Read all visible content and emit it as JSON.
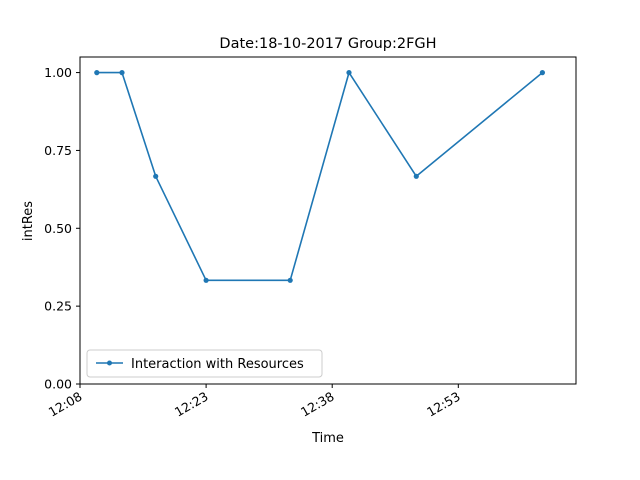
{
  "chart_data": {
    "type": "line",
    "title": "Date:18-10-2017  Group:2FGH",
    "xlabel": "Time",
    "ylabel": "intRes",
    "x_ticks": [
      "12:08",
      "12:23",
      "12:38",
      "12:53"
    ],
    "y_ticks": [
      "0.00",
      "0.25",
      "0.50",
      "0.75",
      "1.00"
    ],
    "ylim": [
      0,
      1.05
    ],
    "xlim": [
      "12:08",
      "13:07"
    ],
    "grid": false,
    "legend_position": "lower-left",
    "series": [
      {
        "name": "Interaction with Resources",
        "color": "#1f77b4",
        "marker": "circle",
        "points": [
          {
            "x": "12:10",
            "y": 1.0
          },
          {
            "x": "12:13",
            "y": 1.0
          },
          {
            "x": "12:17",
            "y": 0.667
          },
          {
            "x": "12:23",
            "y": 0.333
          },
          {
            "x": "12:33",
            "y": 0.333
          },
          {
            "x": "12:40",
            "y": 1.0
          },
          {
            "x": "12:48",
            "y": 0.667
          },
          {
            "x": "13:03",
            "y": 1.0
          }
        ]
      }
    ]
  }
}
